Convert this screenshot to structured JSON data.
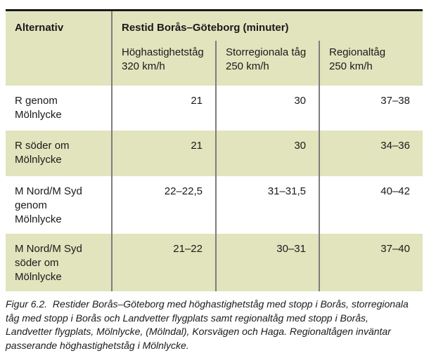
{
  "table": {
    "header": {
      "alternativ_label": "Alternativ",
      "title": "Restid Borås–Göteborg (minuter)",
      "columns": [
        {
          "name": "Höghastighetståg",
          "speed": "320 km/h"
        },
        {
          "name": "Storregionala tåg",
          "speed": "250 km/h"
        },
        {
          "name": "Regionaltåg",
          "speed": "250 km/h"
        }
      ]
    },
    "rows": [
      {
        "label": "R genom\nMölnlycke",
        "values": [
          "21",
          "30",
          "37–38"
        ]
      },
      {
        "label": "R söder om\nMölnlycke",
        "values": [
          "21",
          "30",
          "34–36"
        ]
      },
      {
        "label": "M Nord/M Syd\ngenom\nMölnlycke",
        "values": [
          "22–22,5",
          "31–31,5",
          "40–42"
        ]
      },
      {
        "label": "M Nord/M Syd\nsöder om\nMölnlycke",
        "values": [
          "21–22",
          "30–31",
          "37–40"
        ]
      }
    ]
  },
  "caption": "Figur 6.2.  Restider Borås–Göteborg med höghastighetståg med stopp i Borås, storregionala\ntåg med stopp i Borås och Landvetter flygplats samt regionaltåg med stopp i Borås,\nLandvetter flygplats, Mölnlycke, (Mölndal), Korsvägen och Haga. Regionaltågen inväntar\npasserande höghastighetståg i Mölnlycke.",
  "colors": {
    "row_highlight": "#e1e4bd",
    "divider": "#7d7d7d",
    "top_border": "#1b1b1b",
    "text": "#1a1a1a"
  }
}
